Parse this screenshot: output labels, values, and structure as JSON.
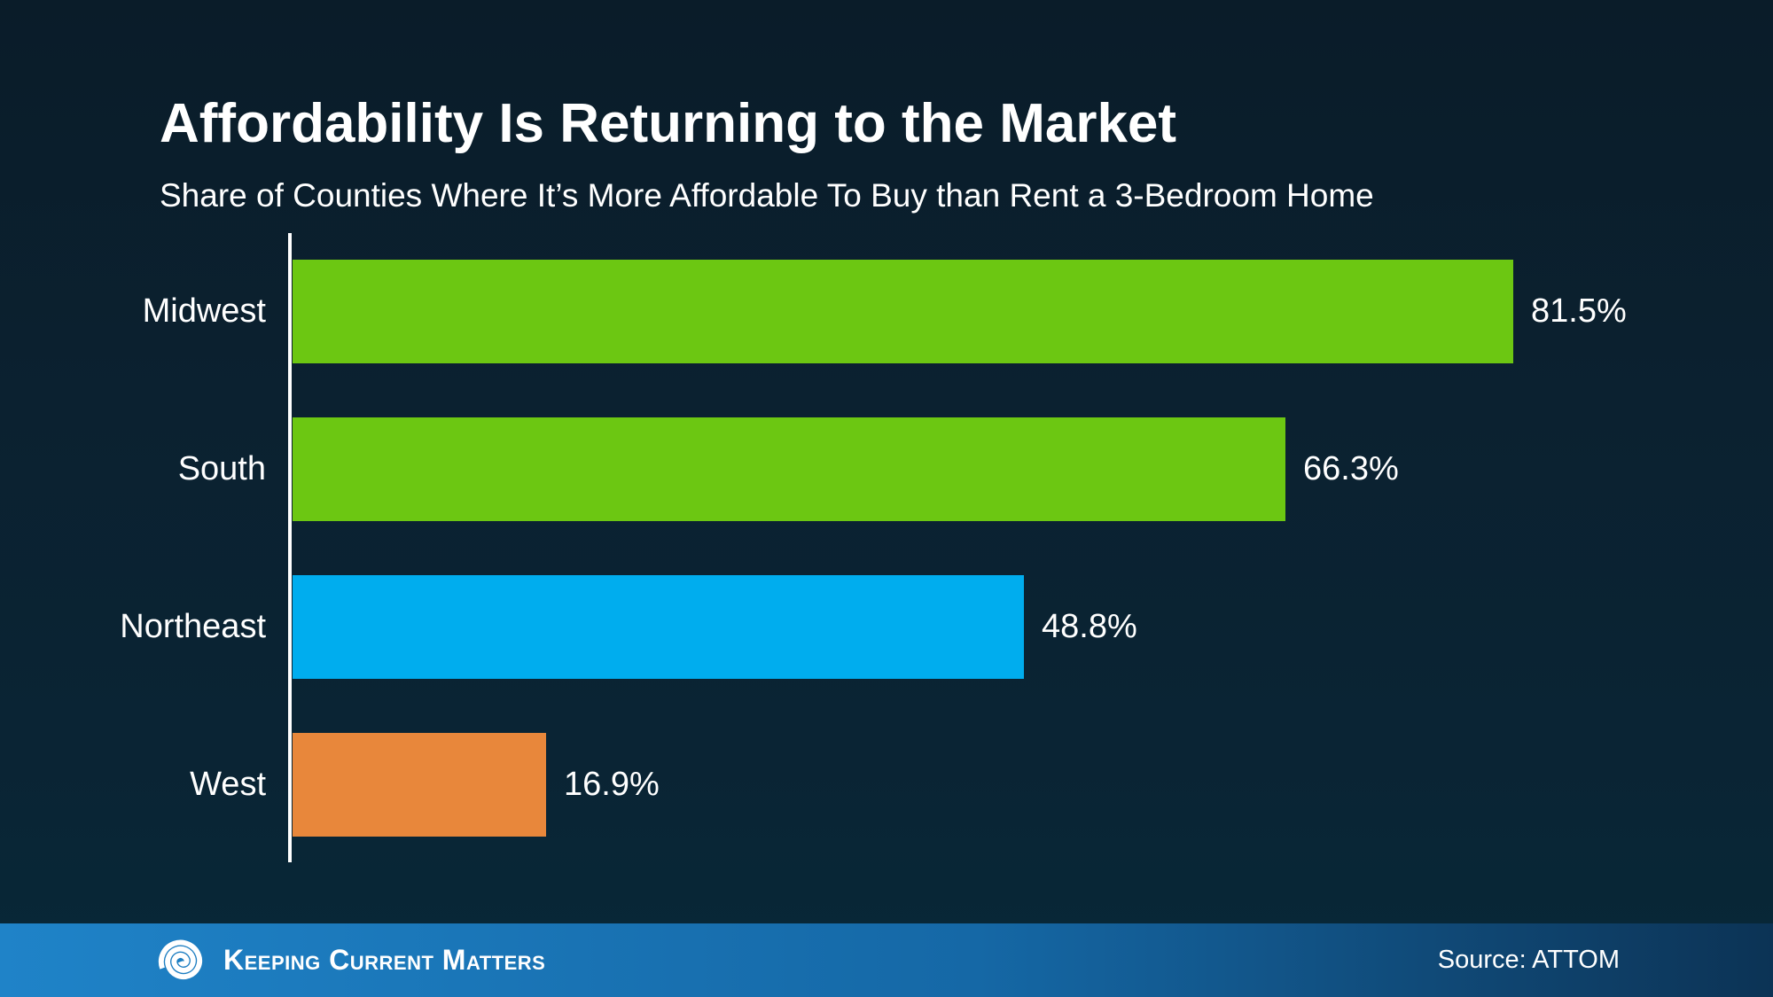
{
  "header": {
    "title": "Affordability Is Returning to the Market",
    "subtitle": "Share of Counties Where It’s More Affordable To Buy than Rent a 3-Bedroom Home"
  },
  "chart_data": {
    "type": "bar",
    "orientation": "horizontal",
    "title": "Affordability Is Returning to the Market",
    "subtitle": "Share of Counties Where It’s More Affordable To Buy than Rent a 3-Bedroom Home",
    "categories": [
      "Midwest",
      "South",
      "Northeast",
      "West"
    ],
    "values": [
      81.5,
      66.3,
      48.8,
      16.9
    ],
    "value_labels": [
      "81.5%",
      "66.3%",
      "48.8%",
      "16.9%"
    ],
    "bar_colors": [
      "#6cc712",
      "#6cc712",
      "#00adee",
      "#e8873b"
    ],
    "unit": "%",
    "xlim": [
      0,
      95
    ],
    "grid": false,
    "legend": false,
    "axis_color": "#ffffff",
    "label_color": "#ffffff"
  },
  "footer": {
    "brand": "Keeping Current Matters",
    "logo_icon": "kcm-swirl-icon",
    "source": "Source: ATTOM",
    "gradient": [
      "#1f83c8",
      "#0c3355"
    ]
  },
  "colors": {
    "background": "#0a2130",
    "text": "#ffffff",
    "axis": "#ffffff"
  }
}
